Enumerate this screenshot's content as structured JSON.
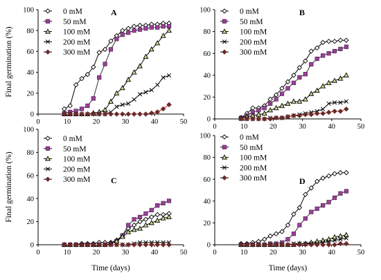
{
  "chart_data": [
    {
      "type": "line",
      "panel_label": "A",
      "xlabel": "",
      "ylabel": "Final germination (%)",
      "xlim": [
        0,
        50
      ],
      "ylim": [
        0,
        100
      ],
      "xticks": [
        "0",
        "10",
        "20",
        "30",
        "40",
        "50"
      ],
      "yticks": [
        "0",
        "20",
        "40",
        "60",
        "80",
        "100"
      ],
      "legend_position": "top-left",
      "series": [
        {
          "name": "0 mM",
          "marker": "diamond-open",
          "color": "#000000",
          "x": [
            9,
            11,
            13,
            15,
            17,
            19,
            21,
            23,
            25,
            27,
            29,
            31,
            33,
            35,
            37,
            39,
            41,
            43,
            45
          ],
          "y": [
            5,
            8,
            28,
            34,
            38,
            45,
            59,
            62,
            70,
            75,
            80,
            82,
            84,
            85,
            85,
            86,
            86,
            87,
            87
          ]
        },
        {
          "name": "50 mM",
          "marker": "square",
          "color": "#9b3f9b",
          "x": [
            9,
            11,
            13,
            15,
            17,
            19,
            21,
            23,
            25,
            27,
            29,
            31,
            33,
            35,
            37,
            39,
            41,
            43,
            45
          ],
          "y": [
            1,
            2,
            3,
            5,
            8,
            15,
            35,
            48,
            62,
            72,
            76,
            78,
            80,
            81,
            82,
            83,
            83,
            84,
            84
          ]
        },
        {
          "name": "100 mM",
          "marker": "triangle",
          "color": "#000000",
          "x": [
            9,
            11,
            13,
            15,
            17,
            19,
            21,
            23,
            25,
            27,
            29,
            31,
            33,
            35,
            37,
            39,
            41,
            43,
            45
          ],
          "y": [
            0,
            0,
            0,
            0,
            0,
            1,
            2,
            4,
            12,
            20,
            25,
            33,
            40,
            46,
            55,
            62,
            68,
            75,
            80
          ]
        },
        {
          "name": "200 mM",
          "marker": "cross",
          "color": "#000000",
          "x": [
            9,
            11,
            13,
            15,
            17,
            19,
            21,
            23,
            25,
            27,
            29,
            31,
            33,
            35,
            37,
            39,
            41,
            43,
            45
          ],
          "y": [
            0,
            0,
            0,
            0,
            0,
            0,
            0,
            0,
            2,
            7,
            9,
            10,
            14,
            19,
            21,
            23,
            28,
            35,
            37
          ]
        },
        {
          "name": "300 mM",
          "marker": "diamond",
          "color": "#6b2a2a",
          "x": [
            9,
            11,
            13,
            15,
            17,
            19,
            21,
            23,
            25,
            27,
            29,
            31,
            33,
            35,
            37,
            39,
            41,
            43,
            45
          ],
          "y": [
            0,
            0,
            0,
            0,
            0,
            0,
            0,
            0,
            0,
            0,
            0,
            0,
            0,
            0,
            0,
            1,
            2,
            5,
            9
          ]
        }
      ]
    },
    {
      "type": "line",
      "panel_label": "B",
      "xlabel": "",
      "ylabel": "",
      "xlim": [
        0,
        50
      ],
      "ylim": [
        0,
        100
      ],
      "xticks": [
        "0",
        "10",
        "20",
        "30",
        "40",
        "50"
      ],
      "yticks": [
        "0",
        "20",
        "40",
        "60",
        "80",
        "100"
      ],
      "legend_position": "top-left",
      "series": [
        {
          "name": "0 mM",
          "marker": "diamond-open",
          "color": "#000000",
          "x": [
            9,
            11,
            13,
            15,
            17,
            19,
            21,
            23,
            25,
            27,
            29,
            31,
            33,
            35,
            37,
            39,
            41,
            43,
            45
          ],
          "y": [
            1,
            5,
            10,
            10,
            12,
            18,
            22,
            28,
            34,
            40,
            47,
            53,
            62,
            65,
            70,
            71,
            71,
            72,
            72
          ]
        },
        {
          "name": "50 mM",
          "marker": "square",
          "color": "#9b3f9b",
          "x": [
            9,
            11,
            13,
            15,
            17,
            19,
            21,
            23,
            25,
            27,
            29,
            31,
            33,
            35,
            37,
            39,
            41,
            43,
            45
          ],
          "y": [
            1,
            3,
            6,
            8,
            10,
            14,
            18,
            23,
            28,
            33,
            38,
            41,
            50,
            55,
            58,
            60,
            62,
            64,
            66
          ]
        },
        {
          "name": "100 mM",
          "marker": "triangle",
          "color": "#000000",
          "x": [
            9,
            11,
            13,
            15,
            17,
            19,
            21,
            23,
            25,
            27,
            29,
            31,
            33,
            35,
            37,
            39,
            41,
            43,
            45
          ],
          "y": [
            1,
            2,
            3,
            4,
            5,
            8,
            10,
            12,
            14,
            16,
            16,
            18,
            23,
            26,
            30,
            33,
            35,
            37,
            40
          ]
        },
        {
          "name": "200 mM",
          "marker": "cross",
          "color": "#000000",
          "x": [
            9,
            11,
            13,
            15,
            17,
            19,
            21,
            23,
            25,
            27,
            29,
            31,
            33,
            35,
            37,
            39,
            41,
            43,
            45
          ],
          "y": [
            0,
            0,
            0,
            0,
            0,
            1,
            1,
            1,
            2,
            3,
            4,
            5,
            6,
            7,
            9,
            14,
            15,
            15,
            16
          ]
        },
        {
          "name": "300 mM",
          "marker": "diamond",
          "color": "#6b2a2a",
          "x": [
            9,
            11,
            13,
            15,
            17,
            19,
            21,
            23,
            25,
            27,
            29,
            31,
            33,
            35,
            37,
            39,
            41,
            43,
            45
          ],
          "y": [
            0,
            0,
            0,
            0,
            0,
            0,
            1,
            1,
            2,
            3,
            3,
            4,
            4,
            5,
            5,
            6,
            7,
            7,
            9
          ]
        }
      ]
    },
    {
      "type": "line",
      "panel_label": "C",
      "xlabel": "Time (days)",
      "ylabel": "Final germination (%)",
      "xlim": [
        0,
        50
      ],
      "ylim": [
        0,
        100
      ],
      "xticks": [
        "0",
        "10",
        "20",
        "30",
        "40",
        "50"
      ],
      "yticks": [
        "0",
        "20",
        "40",
        "60",
        "80",
        "100"
      ],
      "legend_position": "top-left",
      "series": [
        {
          "name": "0 mM",
          "marker": "diamond-open",
          "color": "#000000",
          "x": [
            9,
            11,
            13,
            15,
            17,
            19,
            21,
            23,
            25,
            27,
            29,
            31,
            33,
            35,
            37,
            39,
            41,
            43,
            45
          ],
          "y": [
            0,
            0,
            0,
            1,
            1,
            1,
            2,
            2,
            2,
            4,
            8,
            14,
            17,
            20,
            22,
            24,
            26,
            26,
            27
          ]
        },
        {
          "name": "50 mM",
          "marker": "square",
          "color": "#9b3f9b",
          "x": [
            9,
            11,
            13,
            15,
            17,
            19,
            21,
            23,
            25,
            27,
            29,
            31,
            33,
            35,
            37,
            39,
            41,
            43,
            45
          ],
          "y": [
            0,
            0,
            0,
            0,
            0,
            0,
            0,
            0,
            1,
            3,
            8,
            17,
            22,
            24,
            27,
            30,
            34,
            36,
            38
          ]
        },
        {
          "name": "100 mM",
          "marker": "triangle",
          "color": "#000000",
          "x": [
            9,
            11,
            13,
            15,
            17,
            19,
            21,
            23,
            25,
            27,
            29,
            31,
            33,
            35,
            37,
            39,
            41,
            43,
            45
          ],
          "y": [
            0,
            0,
            0,
            0,
            0,
            0,
            0,
            0,
            1,
            3,
            7,
            11,
            13,
            14,
            17,
            19,
            21,
            23,
            24
          ]
        },
        {
          "name": "200 mM",
          "marker": "cross",
          "color": "#000000",
          "x": [
            9,
            11,
            13,
            15,
            17,
            19,
            21,
            23,
            25,
            27,
            29,
            31,
            33,
            35,
            37,
            39,
            41,
            43,
            45
          ],
          "y": [
            0,
            0,
            0,
            0,
            0,
            0,
            0,
            0,
            0,
            0,
            0,
            0,
            1,
            2,
            2,
            2,
            2,
            2,
            2
          ]
        },
        {
          "name": "300 mM",
          "marker": "diamond",
          "color": "#6b2a2a",
          "x": [
            9,
            11,
            13,
            15,
            17,
            19,
            21,
            23,
            25,
            27,
            29,
            31,
            33,
            35,
            37,
            39,
            41,
            43,
            45
          ],
          "y": [
            0,
            0,
            0,
            0,
            0,
            0,
            0,
            0,
            0,
            0,
            0,
            0,
            0,
            0,
            0,
            0,
            0,
            0,
            0
          ]
        }
      ]
    },
    {
      "type": "line",
      "panel_label": "D",
      "xlabel": "Time (days)",
      "ylabel": "",
      "xlim": [
        0,
        50
      ],
      "ylim": [
        0,
        100
      ],
      "xticks": [
        "0",
        "10",
        "20",
        "30",
        "40",
        "50"
      ],
      "yticks": [
        "0",
        "20",
        "40",
        "60",
        "80",
        "100"
      ],
      "legend_position": "top-left",
      "series": [
        {
          "name": "0 mM",
          "marker": "diamond-open",
          "color": "#000000",
          "x": [
            9,
            11,
            13,
            15,
            17,
            19,
            21,
            23,
            25,
            27,
            29,
            31,
            33,
            35,
            37,
            39,
            41,
            43,
            45
          ],
          "y": [
            1,
            1,
            2,
            3,
            5,
            8,
            10,
            12,
            18,
            28,
            34,
            46,
            52,
            58,
            61,
            63,
            65,
            66,
            66
          ]
        },
        {
          "name": "50 mM",
          "marker": "square",
          "color": "#9b3f9b",
          "x": [
            9,
            11,
            13,
            15,
            17,
            19,
            21,
            23,
            25,
            27,
            29,
            31,
            33,
            35,
            37,
            39,
            41,
            43,
            45
          ],
          "y": [
            0,
            0,
            0,
            0,
            0,
            1,
            1,
            2,
            5,
            10,
            18,
            24,
            30,
            33,
            36,
            39,
            43,
            47,
            49
          ]
        },
        {
          "name": "100 mM",
          "marker": "triangle",
          "color": "#000000",
          "x": [
            9,
            11,
            13,
            15,
            17,
            19,
            21,
            23,
            25,
            27,
            29,
            31,
            33,
            35,
            37,
            39,
            41,
            43,
            45
          ],
          "y": [
            0,
            0,
            0,
            0,
            0,
            0,
            0,
            0,
            0,
            0,
            1,
            1,
            2,
            3,
            4,
            5,
            7,
            8,
            9
          ]
        },
        {
          "name": "200 mM",
          "marker": "cross",
          "color": "#000000",
          "x": [
            9,
            11,
            13,
            15,
            17,
            19,
            21,
            23,
            25,
            27,
            29,
            31,
            33,
            35,
            37,
            39,
            41,
            43,
            45
          ],
          "y": [
            0,
            0,
            0,
            0,
            0,
            0,
            0,
            0,
            0,
            1,
            1,
            1,
            1,
            1,
            2,
            3,
            4,
            5,
            6
          ]
        },
        {
          "name": "300 mM",
          "marker": "diamond",
          "color": "#6b2a2a",
          "x": [
            9,
            11,
            13,
            15,
            17,
            19,
            21,
            23,
            25,
            27,
            29,
            31,
            33,
            35,
            37,
            39,
            41,
            43,
            45
          ],
          "y": [
            0,
            0,
            0,
            0,
            0,
            0,
            0,
            0,
            0,
            0,
            0,
            0,
            0,
            0,
            0,
            0,
            0,
            1,
            1
          ]
        }
      ]
    }
  ]
}
